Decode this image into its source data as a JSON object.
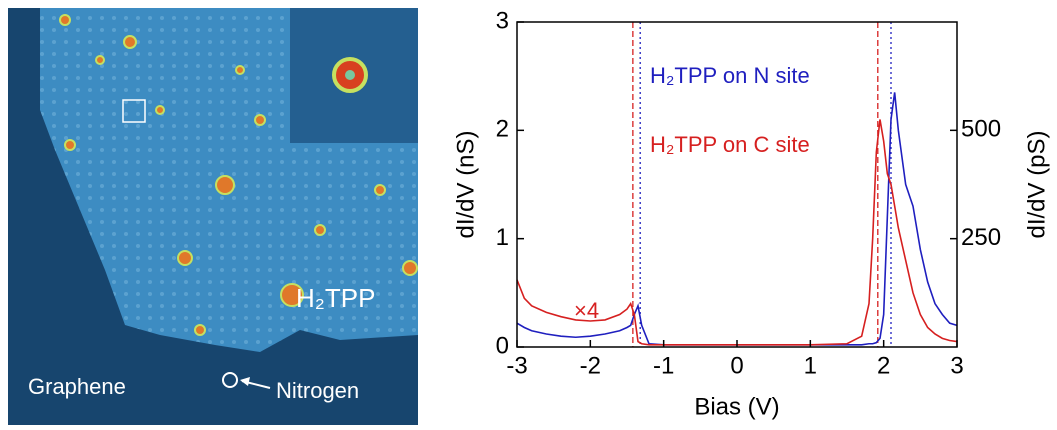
{
  "image": {
    "labels": {
      "molecule": "H₂TPP",
      "substrate": "Graphene",
      "dopant": "Nitrogen"
    }
  },
  "chart_data": {
    "type": "line",
    "x": [
      -3,
      -2.9,
      -2.8,
      -2.6,
      -2.4,
      -2.2,
      -2,
      -1.8,
      -1.6,
      -1.5,
      -1.45,
      -1.4,
      -1.35,
      -1.3,
      -1.2,
      -1,
      0,
      1,
      1.5,
      1.7,
      1.8,
      1.85,
      1.9,
      1.95,
      2,
      2.05,
      2.1,
      2.15,
      2.2,
      2.3,
      2.35,
      2.4,
      2.5,
      2.6,
      2.7,
      2.8,
      2.9,
      3
    ],
    "series": [
      {
        "name": "H₂TPP on N site",
        "color": "#1f1fbf",
        "values": [
          0.22,
          0.18,
          0.15,
          0.12,
          0.1,
          0.09,
          0.1,
          0.12,
          0.15,
          0.18,
          0.2,
          0.3,
          0.38,
          0.2,
          0.03,
          0.02,
          0.02,
          0.02,
          0.02,
          0.02,
          0.03,
          0.03,
          0.04,
          0.08,
          0.3,
          1.2,
          2.1,
          2.35,
          2.0,
          1.5,
          1.4,
          1.3,
          0.9,
          0.6,
          0.4,
          0.3,
          0.22,
          0.2
        ]
      },
      {
        "name": "H₂TPP on C site",
        "color": "#d62020",
        "values": [
          0.62,
          0.45,
          0.38,
          0.32,
          0.28,
          0.25,
          0.24,
          0.25,
          0.3,
          0.35,
          0.4,
          0.3,
          0.05,
          0.03,
          0.02,
          0.02,
          0.02,
          0.02,
          0.03,
          0.1,
          0.4,
          1.0,
          1.8,
          2.1,
          1.9,
          1.6,
          1.5,
          1.3,
          1.1,
          0.8,
          0.65,
          0.5,
          0.3,
          0.18,
          0.12,
          0.08,
          0.06,
          0.05
        ]
      }
    ],
    "vlines": [
      {
        "x": -1.42,
        "color": "#d62020"
      },
      {
        "x": 1.92,
        "color": "#d62020"
      },
      {
        "x": -1.32,
        "color": "#1f1fbf"
      },
      {
        "x": 2.1,
        "color": "#1f1fbf"
      }
    ],
    "annotation": "×4",
    "xlabel": "Bias (V)",
    "ylabel": "dI/dV (nS)",
    "y2label": "dI/dV (pS)",
    "xlim": [
      -3,
      3
    ],
    "xticks": [
      -3,
      -2,
      -1,
      0,
      1,
      2,
      3
    ],
    "ylim": [
      0,
      3
    ],
    "yticks": [
      0,
      1,
      2,
      3
    ],
    "y2lim": [
      0,
      750
    ],
    "y2ticks": [
      250,
      500
    ]
  }
}
